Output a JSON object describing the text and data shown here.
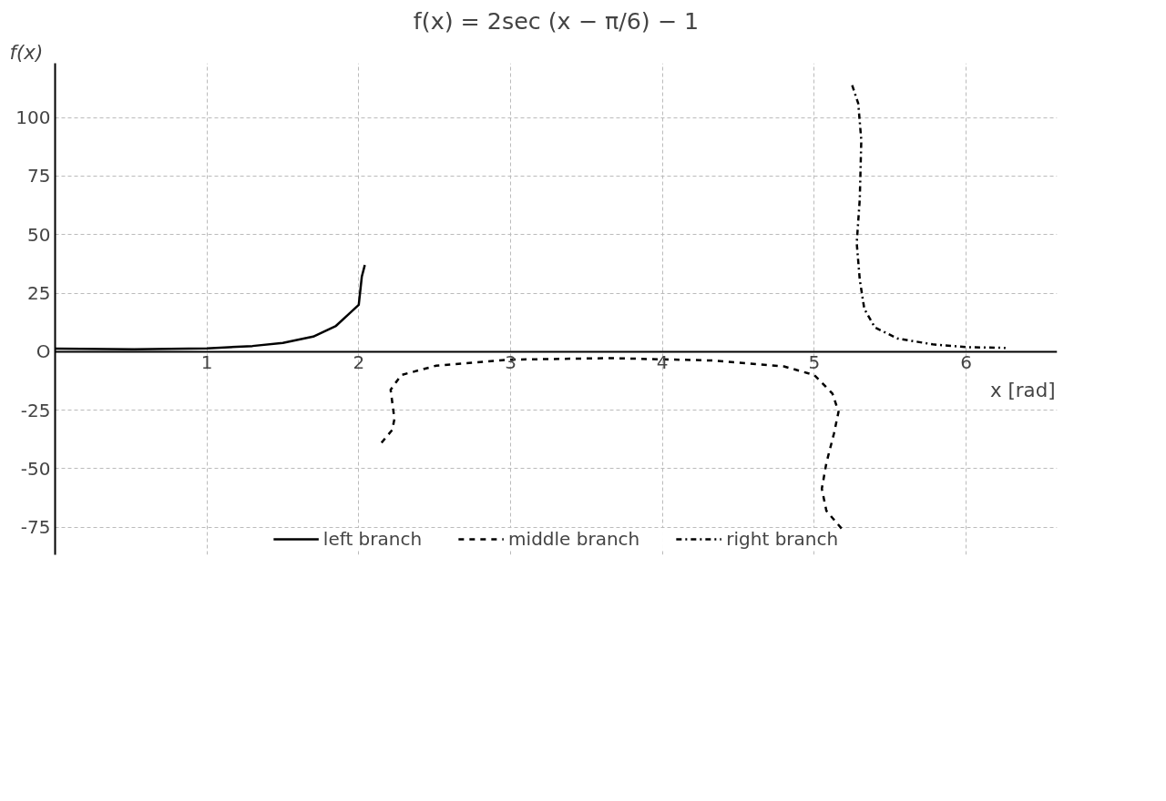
{
  "chart_data": {
    "type": "line",
    "title": "f(x) = 2sec (x − π/6) − 1",
    "xlabel": "x [rad]",
    "ylabel": "f(x)",
    "annotations": [
      "O"
    ],
    "xlim": [
      0,
      6.6
    ],
    "ylim": [
      -86.8,
      123.2
    ],
    "xticks": [
      1,
      2,
      3,
      4,
      5,
      6
    ],
    "yticks": [
      -75,
      -50,
      -25,
      25,
      50,
      75,
      100
    ],
    "grid": true,
    "legend": "bottom",
    "series": [
      {
        "name": "left branch",
        "color": "#000000",
        "line_style": "solid",
        "x": [
          0,
          0.52,
          1,
          1.3,
          1.5,
          1.7,
          1.85,
          1.95,
          2.0,
          2.02,
          2.04
        ],
        "values": [
          1.31,
          1,
          1.4,
          2.4,
          3.7,
          6.4,
          11,
          17,
          20,
          32,
          37
        ]
      },
      {
        "name": "middle branch",
        "color": "#000000",
        "line_style": "dashed",
        "x": [
          2.15,
          2.22,
          2.235,
          2.21,
          2.28,
          2.51,
          3.0,
          3.66,
          4.34,
          4.8,
          5.0,
          5.12,
          5.16,
          5.13,
          5.08,
          5.05,
          5.08,
          5.2
        ],
        "values": [
          -38.9,
          -33.5,
          -28.8,
          -16.3,
          -10,
          -6,
          -3.4,
          -2.8,
          -3.8,
          -6.3,
          -10,
          -17.9,
          -25.7,
          -35,
          -47.6,
          -58.6,
          -68,
          -77.1
        ]
      },
      {
        "name": "right branch",
        "color": "#000000",
        "line_style": "dashdot",
        "x": [
          5.25,
          5.29,
          5.31,
          5.3,
          5.28,
          5.3,
          5.33,
          5.4,
          5.55,
          5.78,
          6.0,
          6.26
        ],
        "values": [
          113.8,
          106,
          90.3,
          65.2,
          46.4,
          30.7,
          18.2,
          10.3,
          5.6,
          3.1,
          1.9,
          1.6
        ]
      }
    ]
  }
}
